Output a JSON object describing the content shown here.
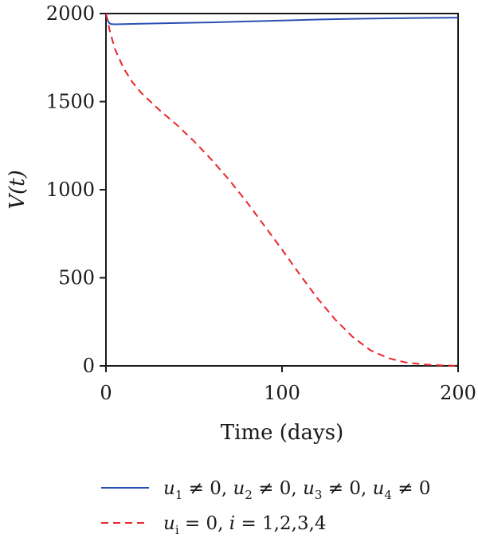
{
  "chart_data": {
    "type": "line",
    "xlabel": "Time (days)",
    "ylabel": "V(t)",
    "xlim": [
      0,
      200
    ],
    "ylim": [
      0,
      2000
    ],
    "xticks": [
      "0",
      "100",
      "200"
    ],
    "yticks": [
      "0",
      "500",
      "1000",
      "1500",
      "2000"
    ],
    "grid": false,
    "legend_position": "bottom",
    "series": [
      {
        "name": "u1 ≠ 0, u2 ≠ 0, u3 ≠ 0, u4 ≠ 0",
        "color": "#2b4fb5",
        "dash": "solid",
        "x": [
          0,
          1,
          2,
          3,
          5,
          10,
          20,
          40,
          60,
          80,
          100,
          120,
          140,
          160,
          180,
          200
        ],
        "y": [
          2000,
          1960,
          1945,
          1940,
          1939,
          1940,
          1942,
          1946,
          1950,
          1955,
          1960,
          1966,
          1970,
          1973,
          1975,
          1977
        ]
      },
      {
        "name": "ui = 0, i = 1,2,3,4",
        "color": "#e8262c",
        "dash": "dashed",
        "x": [
          0,
          2,
          5,
          10,
          15,
          20,
          30,
          40,
          50,
          60,
          70,
          80,
          90,
          100,
          110,
          120,
          130,
          140,
          150,
          160,
          170,
          180,
          190,
          200
        ],
        "y": [
          2000,
          1910,
          1800,
          1690,
          1610,
          1550,
          1455,
          1370,
          1275,
          1170,
          1055,
          930,
          795,
          660,
          520,
          385,
          265,
          165,
          90,
          45,
          20,
          8,
          3,
          1
        ]
      }
    ]
  },
  "legend": {
    "entries": [
      {
        "id": "controlled",
        "color": "#2b4fb5",
        "dash": "solid"
      },
      {
        "id": "uncontrolled",
        "color": "#e8262c",
        "dash": "dashed"
      }
    ]
  }
}
